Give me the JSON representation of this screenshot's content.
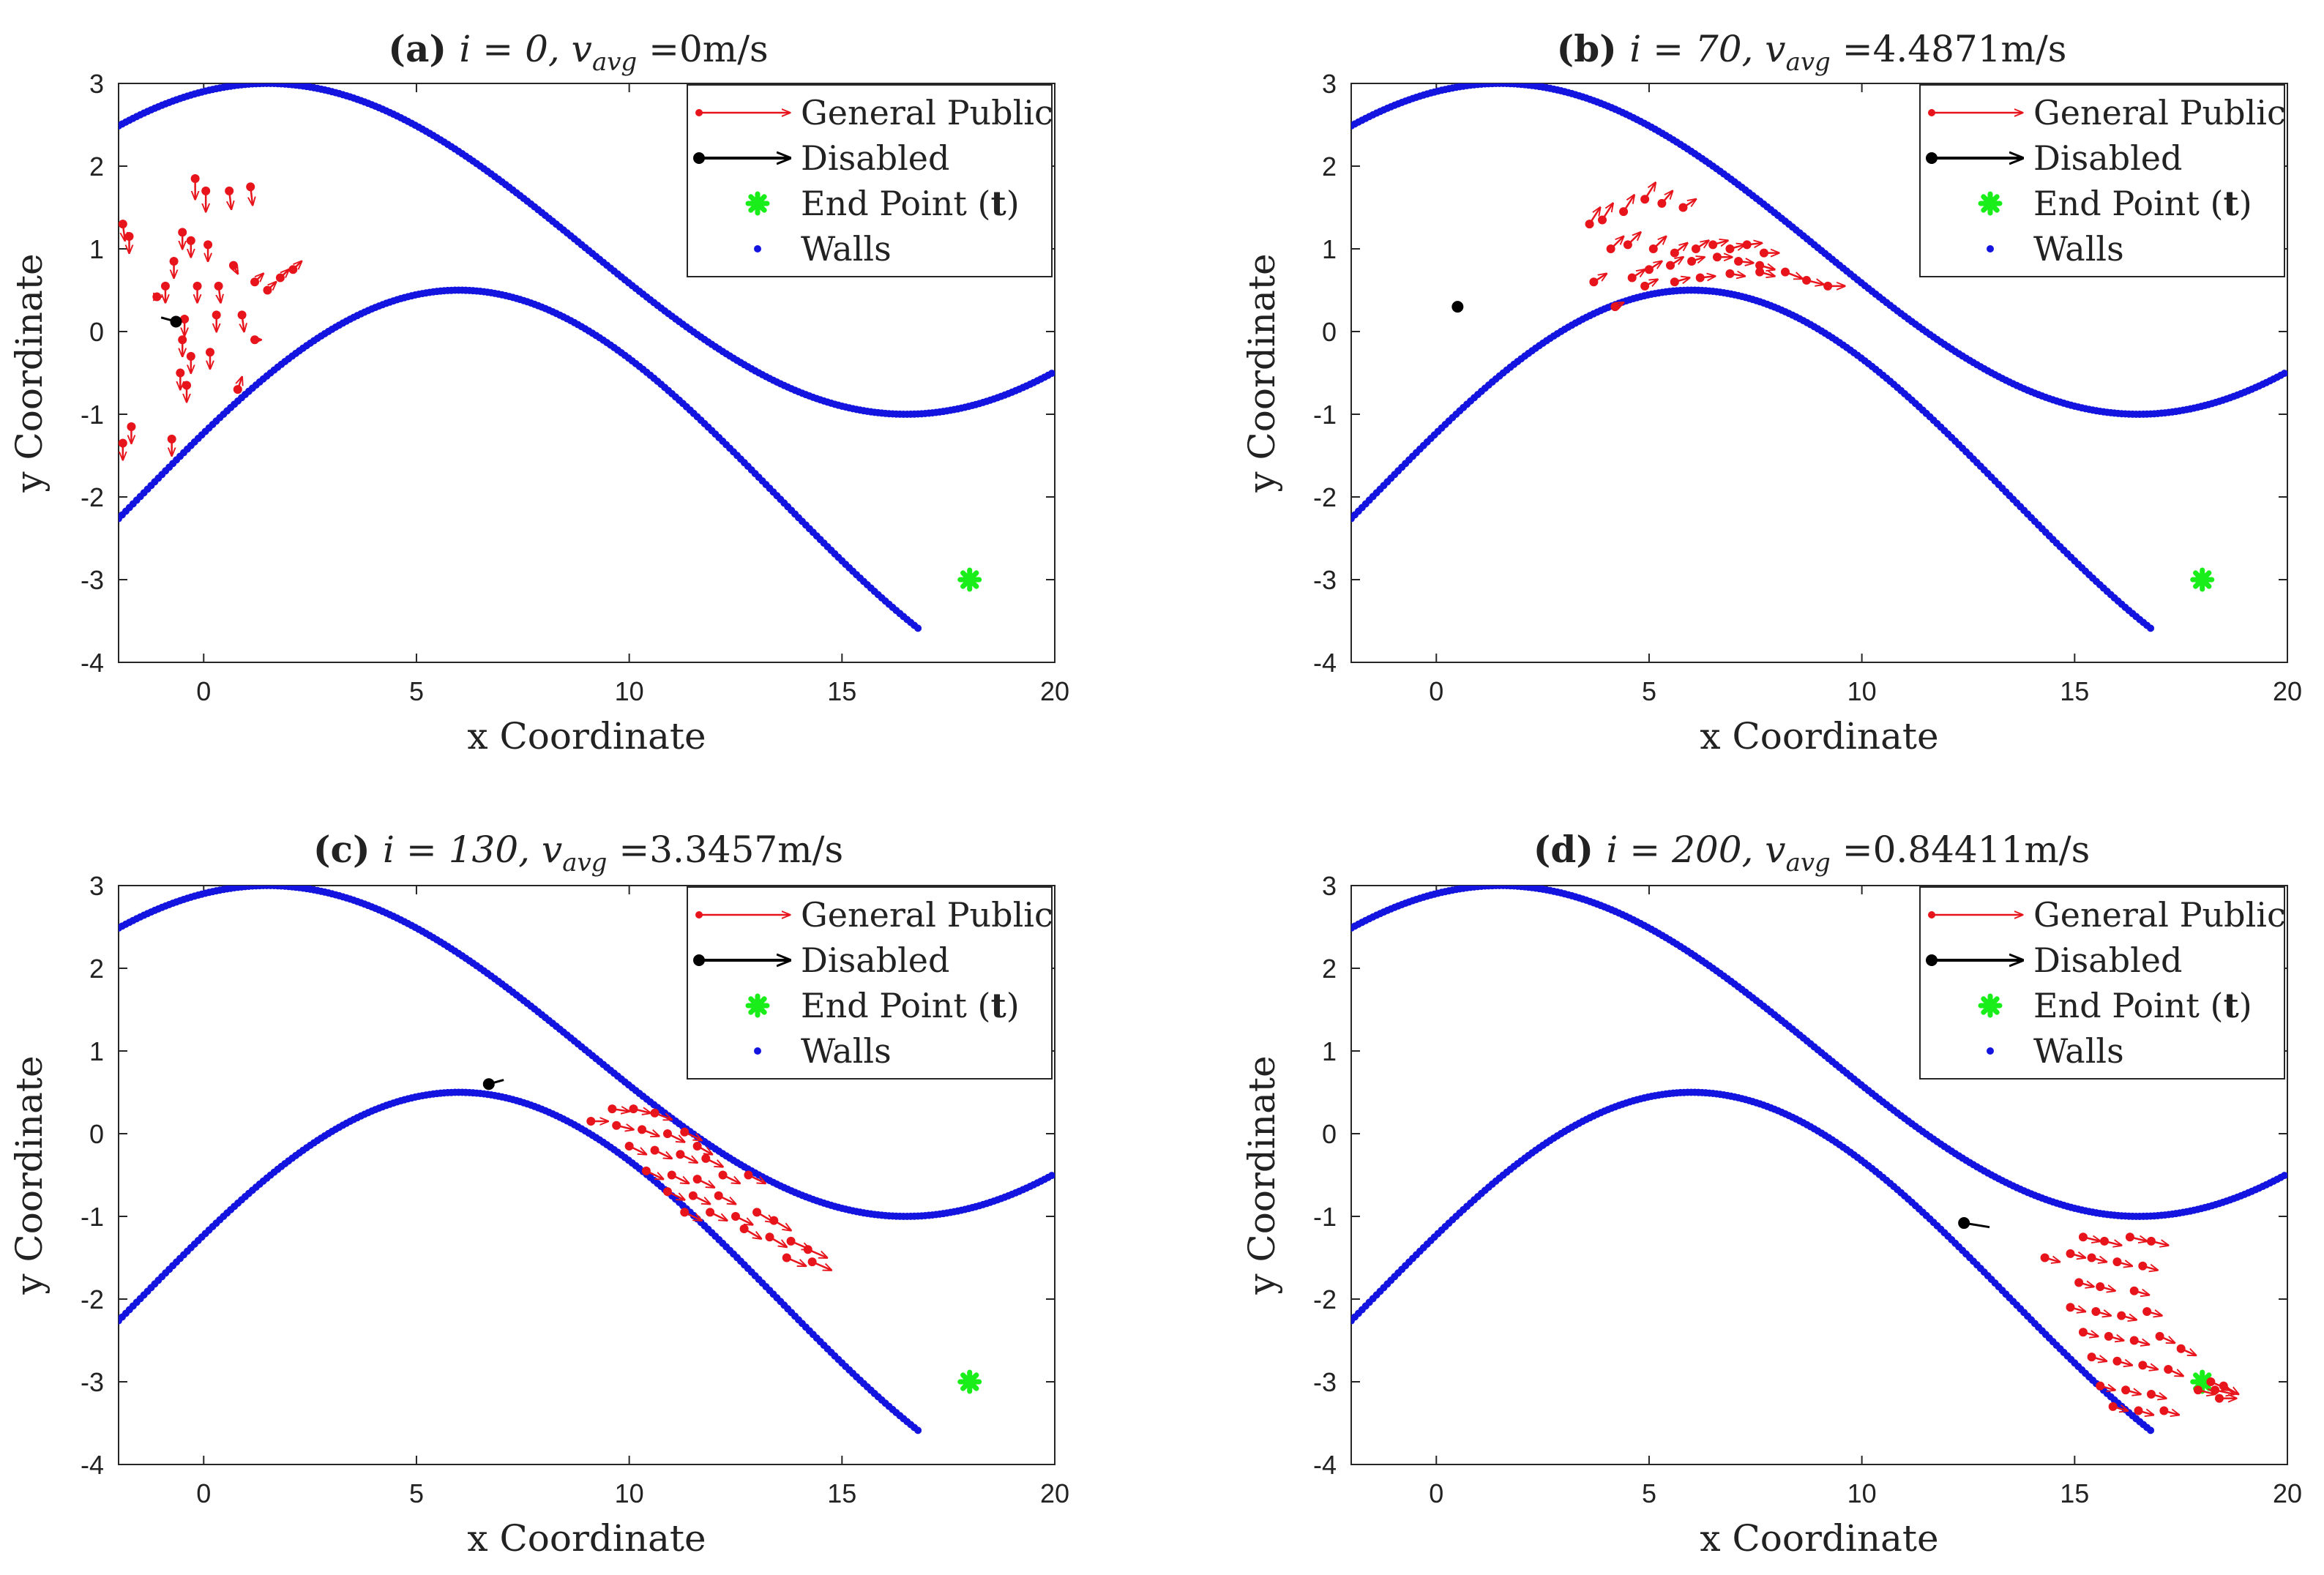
{
  "chart_data": [
    {
      "type": "scatter",
      "title_prefix": "(a)",
      "title_math": "i = 0, v",
      "title_sub": "avg",
      "title_value": "=0m/s",
      "xlabel": "x Coordinate",
      "ylabel": "y Coordinate",
      "xlim": [
        -2,
        20
      ],
      "ylim": [
        -4,
        3
      ],
      "xticks": [
        "0",
        "5",
        "10",
        "15",
        "20"
      ],
      "yticks": [
        "-4",
        "-3",
        "-2",
        "-1",
        "0",
        "1",
        "2",
        "3"
      ],
      "grid": false,
      "legend_position": "top-right",
      "legend": [
        "General Public",
        "Disabled",
        "End Point (t)",
        "Walls"
      ],
      "walls": {
        "upper": {
          "amplitude": 2,
          "offset": 1,
          "phase_x": 1.5,
          "period": 30,
          "x_range": [
            -2,
            20
          ]
        },
        "lower": {
          "amplitude": 2.5,
          "offset": -2,
          "phase_x": 6,
          "period": 30,
          "x_range": [
            -2,
            16.8
          ]
        }
      },
      "end_point": {
        "x": 18,
        "y": -3
      },
      "disabled": [
        {
          "x": -0.65,
          "y": 0.12,
          "dx": -0.35,
          "dy": 0.05
        }
      ],
      "public": [
        {
          "x": -1.9,
          "y": 1.3,
          "dx": 0.05,
          "dy": -0.2
        },
        {
          "x": -1.75,
          "y": 1.15,
          "dx": 0.0,
          "dy": -0.2
        },
        {
          "x": -0.2,
          "y": 1.85,
          "dx": 0.0,
          "dy": -0.25
        },
        {
          "x": 0.05,
          "y": 1.7,
          "dx": 0.0,
          "dy": -0.25
        },
        {
          "x": 0.6,
          "y": 1.7,
          "dx": 0.05,
          "dy": -0.22
        },
        {
          "x": 1.1,
          "y": 1.75,
          "dx": 0.05,
          "dy": -0.22
        },
        {
          "x": -0.5,
          "y": 1.2,
          "dx": 0.0,
          "dy": -0.2
        },
        {
          "x": -0.3,
          "y": 1.1,
          "dx": 0.0,
          "dy": -0.2
        },
        {
          "x": 0.1,
          "y": 1.05,
          "dx": 0.0,
          "dy": -0.2
        },
        {
          "x": 0.7,
          "y": 0.8,
          "dx": 0.1,
          "dy": -0.1
        },
        {
          "x": 1.2,
          "y": 0.6,
          "dx": 0.2,
          "dy": 0.1
        },
        {
          "x": 1.5,
          "y": 0.5,
          "dx": 0.2,
          "dy": 0.1
        },
        {
          "x": 1.8,
          "y": 0.65,
          "dx": 0.2,
          "dy": 0.1
        },
        {
          "x": 2.1,
          "y": 0.75,
          "dx": 0.2,
          "dy": 0.1
        },
        {
          "x": -1.1,
          "y": 0.42,
          "dx": 0.1,
          "dy": 0.0
        },
        {
          "x": -0.9,
          "y": 0.55,
          "dx": 0.0,
          "dy": -0.2
        },
        {
          "x": -0.7,
          "y": 0.85,
          "dx": 0.0,
          "dy": -0.2
        },
        {
          "x": -0.15,
          "y": 0.55,
          "dx": 0.0,
          "dy": -0.2
        },
        {
          "x": 0.35,
          "y": 0.55,
          "dx": 0.05,
          "dy": -0.2
        },
        {
          "x": 0.3,
          "y": 0.2,
          "dx": 0.0,
          "dy": -0.2
        },
        {
          "x": 0.9,
          "y": 0.2,
          "dx": 0.05,
          "dy": -0.2
        },
        {
          "x": -0.45,
          "y": 0.15,
          "dx": 0.0,
          "dy": -0.2
        },
        {
          "x": -0.5,
          "y": -0.1,
          "dx": 0.0,
          "dy": -0.2
        },
        {
          "x": -0.3,
          "y": -0.3,
          "dx": 0.0,
          "dy": -0.2
        },
        {
          "x": 0.15,
          "y": -0.25,
          "dx": 0.0,
          "dy": -0.2
        },
        {
          "x": -0.55,
          "y": -0.5,
          "dx": 0.0,
          "dy": -0.2
        },
        {
          "x": -0.4,
          "y": -0.65,
          "dx": 0.0,
          "dy": -0.2
        },
        {
          "x": 1.2,
          "y": -0.1,
          "dx": 0.15,
          "dy": 0.0
        },
        {
          "x": 0.8,
          "y": -0.7,
          "dx": 0.1,
          "dy": 0.15
        },
        {
          "x": -1.7,
          "y": -1.15,
          "dx": 0.0,
          "dy": -0.2
        },
        {
          "x": -1.9,
          "y": -1.35,
          "dx": 0.0,
          "dy": -0.2
        },
        {
          "x": -0.75,
          "y": -1.3,
          "dx": 0.0,
          "dy": -0.2
        }
      ]
    },
    {
      "type": "scatter",
      "title_prefix": "(b)",
      "title_math": "i = 70, v",
      "title_sub": "avg",
      "title_value": "=4.4871m/s",
      "xlabel": "x Coordinate",
      "ylabel": "y Coordinate",
      "xlim": [
        -2,
        20
      ],
      "ylim": [
        -4,
        3
      ],
      "xticks": [
        "0",
        "5",
        "10",
        "15",
        "20"
      ],
      "yticks": [
        "-4",
        "-3",
        "-2",
        "-1",
        "0",
        "1",
        "2",
        "3"
      ],
      "grid": false,
      "legend_position": "top-right",
      "legend": [
        "General Public",
        "Disabled",
        "End Point (t)",
        "Walls"
      ],
      "walls": {
        "upper": {
          "amplitude": 2,
          "offset": 1,
          "phase_x": 1.5,
          "period": 30,
          "x_range": [
            -2,
            20
          ]
        },
        "lower": {
          "amplitude": 2.5,
          "offset": -2,
          "phase_x": 6,
          "period": 30,
          "x_range": [
            -2,
            16.8
          ]
        }
      },
      "end_point": {
        "x": 18,
        "y": -3
      },
      "disabled": [
        {
          "x": 0.5,
          "y": 0.3,
          "dx": 0,
          "dy": 0
        }
      ],
      "public": [
        {
          "x": 3.6,
          "y": 1.3,
          "dx": 0.25,
          "dy": 0.2
        },
        {
          "x": 3.9,
          "y": 1.35,
          "dx": 0.25,
          "dy": 0.2
        },
        {
          "x": 4.4,
          "y": 1.45,
          "dx": 0.25,
          "dy": 0.2
        },
        {
          "x": 4.9,
          "y": 1.6,
          "dx": 0.25,
          "dy": 0.2
        },
        {
          "x": 5.3,
          "y": 1.55,
          "dx": 0.25,
          "dy": 0.15
        },
        {
          "x": 5.8,
          "y": 1.5,
          "dx": 0.3,
          "dy": 0.1
        },
        {
          "x": 4.1,
          "y": 1.0,
          "dx": 0.3,
          "dy": 0.15
        },
        {
          "x": 4.5,
          "y": 1.05,
          "dx": 0.3,
          "dy": 0.15
        },
        {
          "x": 5.1,
          "y": 1.0,
          "dx": 0.3,
          "dy": 0.15
        },
        {
          "x": 5.6,
          "y": 0.95,
          "dx": 0.3,
          "dy": 0.12
        },
        {
          "x": 6.1,
          "y": 1.0,
          "dx": 0.3,
          "dy": 0.1
        },
        {
          "x": 6.5,
          "y": 1.05,
          "dx": 0.35,
          "dy": 0.05
        },
        {
          "x": 6.9,
          "y": 1.0,
          "dx": 0.35,
          "dy": 0.05
        },
        {
          "x": 7.3,
          "y": 1.05,
          "dx": 0.35,
          "dy": 0.02
        },
        {
          "x": 7.7,
          "y": 0.95,
          "dx": 0.35,
          "dy": 0.0
        },
        {
          "x": 3.7,
          "y": 0.6,
          "dx": 0.3,
          "dy": 0.1
        },
        {
          "x": 4.6,
          "y": 0.65,
          "dx": 0.3,
          "dy": 0.1
        },
        {
          "x": 5.0,
          "y": 0.75,
          "dx": 0.3,
          "dy": 0.1
        },
        {
          "x": 5.5,
          "y": 0.8,
          "dx": 0.3,
          "dy": 0.1
        },
        {
          "x": 6.0,
          "y": 0.85,
          "dx": 0.3,
          "dy": 0.05
        },
        {
          "x": 6.6,
          "y": 0.9,
          "dx": 0.35,
          "dy": 0.0
        },
        {
          "x": 7.1,
          "y": 0.85,
          "dx": 0.35,
          "dy": -0.02
        },
        {
          "x": 7.6,
          "y": 0.8,
          "dx": 0.35,
          "dy": -0.05
        },
        {
          "x": 4.9,
          "y": 0.55,
          "dx": 0.3,
          "dy": 0.08
        },
        {
          "x": 5.6,
          "y": 0.6,
          "dx": 0.35,
          "dy": 0.05
        },
        {
          "x": 6.2,
          "y": 0.65,
          "dx": 0.35,
          "dy": 0.02
        },
        {
          "x": 6.9,
          "y": 0.7,
          "dx": 0.35,
          "dy": -0.03
        },
        {
          "x": 7.6,
          "y": 0.72,
          "dx": 0.35,
          "dy": -0.05
        },
        {
          "x": 8.2,
          "y": 0.72,
          "dx": 0.4,
          "dy": -0.08
        },
        {
          "x": 8.7,
          "y": 0.62,
          "dx": 0.4,
          "dy": -0.05
        },
        {
          "x": 9.2,
          "y": 0.55,
          "dx": 0.4,
          "dy": 0.0
        },
        {
          "x": 4.2,
          "y": 0.3,
          "dx": 0.2,
          "dy": 0.05
        }
      ]
    },
    {
      "type": "scatter",
      "title_prefix": "(c)",
      "title_math": "i = 130, v",
      "title_sub": "avg",
      "title_value": "=3.3457m/s",
      "xlabel": "x Coordinate",
      "ylabel": "y Coordinate",
      "xlim": [
        -2,
        20
      ],
      "ylim": [
        -4,
        3
      ],
      "xticks": [
        "0",
        "5",
        "10",
        "15",
        "20"
      ],
      "yticks": [
        "-4",
        "-3",
        "-2",
        "-1",
        "0",
        "1",
        "2",
        "3"
      ],
      "grid": false,
      "legend_position": "top-right",
      "legend": [
        "General Public",
        "Disabled",
        "End Point (t)",
        "Walls"
      ],
      "walls": {
        "upper": {
          "amplitude": 2,
          "offset": 1,
          "phase_x": 1.5,
          "period": 30,
          "x_range": [
            -2,
            20
          ]
        },
        "lower": {
          "amplitude": 2.5,
          "offset": -2,
          "phase_x": 6,
          "period": 30,
          "x_range": [
            -2,
            16.8
          ]
        }
      },
      "end_point": {
        "x": 18,
        "y": -3
      },
      "disabled": [
        {
          "x": 6.7,
          "y": 0.6,
          "dx": 0.35,
          "dy": 0.05
        }
      ],
      "public": [
        {
          "x": 9.1,
          "y": 0.15,
          "dx": 0.4,
          "dy": 0.0
        },
        {
          "x": 9.6,
          "y": 0.3,
          "dx": 0.4,
          "dy": -0.03
        },
        {
          "x": 10.1,
          "y": 0.3,
          "dx": 0.4,
          "dy": -0.05
        },
        {
          "x": 10.6,
          "y": 0.25,
          "dx": 0.4,
          "dy": -0.08
        },
        {
          "x": 9.7,
          "y": 0.1,
          "dx": 0.4,
          "dy": -0.05
        },
        {
          "x": 10.3,
          "y": 0.05,
          "dx": 0.4,
          "dy": -0.08
        },
        {
          "x": 10.9,
          "y": 0.0,
          "dx": 0.4,
          "dy": -0.1
        },
        {
          "x": 11.3,
          "y": 0.02,
          "dx": 0.4,
          "dy": -0.1
        },
        {
          "x": 10.0,
          "y": -0.15,
          "dx": 0.4,
          "dy": -0.1
        },
        {
          "x": 10.6,
          "y": -0.2,
          "dx": 0.4,
          "dy": -0.1
        },
        {
          "x": 11.2,
          "y": -0.25,
          "dx": 0.4,
          "dy": -0.1
        },
        {
          "x": 11.8,
          "y": -0.3,
          "dx": 0.4,
          "dy": -0.1
        },
        {
          "x": 10.4,
          "y": -0.45,
          "dx": 0.4,
          "dy": -0.1
        },
        {
          "x": 11.0,
          "y": -0.5,
          "dx": 0.4,
          "dy": -0.1
        },
        {
          "x": 11.6,
          "y": -0.55,
          "dx": 0.4,
          "dy": -0.1
        },
        {
          "x": 12.2,
          "y": -0.5,
          "dx": 0.4,
          "dy": -0.1
        },
        {
          "x": 12.8,
          "y": -0.5,
          "dx": 0.4,
          "dy": -0.1
        },
        {
          "x": 10.9,
          "y": -0.7,
          "dx": 0.4,
          "dy": -0.1
        },
        {
          "x": 11.5,
          "y": -0.75,
          "dx": 0.4,
          "dy": -0.1
        },
        {
          "x": 12.1,
          "y": -0.75,
          "dx": 0.4,
          "dy": -0.1
        },
        {
          "x": 11.3,
          "y": -0.95,
          "dx": 0.4,
          "dy": -0.1
        },
        {
          "x": 11.9,
          "y": -0.95,
          "dx": 0.4,
          "dy": -0.1
        },
        {
          "x": 12.5,
          "y": -1.0,
          "dx": 0.4,
          "dy": -0.1
        },
        {
          "x": 13.0,
          "y": -0.95,
          "dx": 0.4,
          "dy": -0.12
        },
        {
          "x": 13.4,
          "y": -1.05,
          "dx": 0.4,
          "dy": -0.12
        },
        {
          "x": 12.7,
          "y": -1.15,
          "dx": 0.4,
          "dy": -0.12
        },
        {
          "x": 13.3,
          "y": -1.25,
          "dx": 0.4,
          "dy": -0.12
        },
        {
          "x": 13.8,
          "y": -1.3,
          "dx": 0.45,
          "dy": -0.1
        },
        {
          "x": 14.2,
          "y": -1.4,
          "dx": 0.45,
          "dy": -0.1
        },
        {
          "x": 13.7,
          "y": -1.5,
          "dx": 0.45,
          "dy": -0.1
        },
        {
          "x": 14.3,
          "y": -1.55,
          "dx": 0.45,
          "dy": -0.1
        },
        {
          "x": 11.6,
          "y": -0.15,
          "dx": 0.35,
          "dy": -0.1
        }
      ]
    },
    {
      "type": "scatter",
      "title_prefix": "(d)",
      "title_math": "i = 200, v",
      "title_sub": "avg",
      "title_value": "=0.84411m/s",
      "xlabel": "x Coordinate",
      "ylabel": "y Coordinate",
      "xlim": [
        -2,
        20
      ],
      "ylim": [
        -4,
        3
      ],
      "xticks": [
        "0",
        "5",
        "10",
        "15",
        "20"
      ],
      "yticks": [
        "-4",
        "-3",
        "-2",
        "-1",
        "0",
        "1",
        "2",
        "3"
      ],
      "grid": false,
      "legend_position": "top-right",
      "legend": [
        "General Public",
        "Disabled",
        "End Point (t)",
        "Walls"
      ],
      "walls": {
        "upper": {
          "amplitude": 2,
          "offset": 1,
          "phase_x": 1.5,
          "period": 30,
          "x_range": [
            -2,
            20
          ]
        },
        "lower": {
          "amplitude": 2.5,
          "offset": -2,
          "phase_x": 6,
          "period": 30,
          "x_range": [
            -2,
            16.8
          ]
        }
      },
      "end_point": {
        "x": 18,
        "y": -3
      },
      "disabled": [
        {
          "x": 12.4,
          "y": -1.08,
          "dx": 0.6,
          "dy": -0.05
        }
      ],
      "public": [
        {
          "x": 15.2,
          "y": -1.25,
          "dx": 0.4,
          "dy": -0.05
        },
        {
          "x": 15.7,
          "y": -1.3,
          "dx": 0.4,
          "dy": -0.05
        },
        {
          "x": 16.3,
          "y": -1.25,
          "dx": 0.4,
          "dy": -0.05
        },
        {
          "x": 16.8,
          "y": -1.3,
          "dx": 0.4,
          "dy": -0.05
        },
        {
          "x": 14.3,
          "y": -1.5,
          "dx": 0.35,
          "dy": -0.05
        },
        {
          "x": 14.9,
          "y": -1.45,
          "dx": 0.35,
          "dy": -0.05
        },
        {
          "x": 15.4,
          "y": -1.5,
          "dx": 0.35,
          "dy": -0.05
        },
        {
          "x": 16.0,
          "y": -1.55,
          "dx": 0.35,
          "dy": -0.05
        },
        {
          "x": 16.6,
          "y": -1.6,
          "dx": 0.35,
          "dy": -0.05
        },
        {
          "x": 15.1,
          "y": -1.8,
          "dx": 0.35,
          "dy": -0.05
        },
        {
          "x": 15.6,
          "y": -1.85,
          "dx": 0.35,
          "dy": -0.05
        },
        {
          "x": 16.4,
          "y": -1.9,
          "dx": 0.35,
          "dy": -0.05
        },
        {
          "x": 14.9,
          "y": -2.1,
          "dx": 0.35,
          "dy": -0.05
        },
        {
          "x": 15.5,
          "y": -2.15,
          "dx": 0.35,
          "dy": -0.05
        },
        {
          "x": 16.1,
          "y": -2.2,
          "dx": 0.35,
          "dy": -0.05
        },
        {
          "x": 16.7,
          "y": -2.15,
          "dx": 0.35,
          "dy": -0.05
        },
        {
          "x": 15.2,
          "y": -2.4,
          "dx": 0.35,
          "dy": -0.05
        },
        {
          "x": 15.8,
          "y": -2.45,
          "dx": 0.35,
          "dy": -0.05
        },
        {
          "x": 16.4,
          "y": -2.5,
          "dx": 0.35,
          "dy": -0.05
        },
        {
          "x": 17.0,
          "y": -2.45,
          "dx": 0.35,
          "dy": -0.08
        },
        {
          "x": 17.5,
          "y": -2.6,
          "dx": 0.35,
          "dy": -0.08
        },
        {
          "x": 15.4,
          "y": -2.7,
          "dx": 0.35,
          "dy": -0.05
        },
        {
          "x": 16.0,
          "y": -2.75,
          "dx": 0.35,
          "dy": -0.05
        },
        {
          "x": 16.6,
          "y": -2.8,
          "dx": 0.35,
          "dy": -0.05
        },
        {
          "x": 17.2,
          "y": -2.85,
          "dx": 0.35,
          "dy": -0.08
        },
        {
          "x": 15.6,
          "y": -3.05,
          "dx": 0.35,
          "dy": -0.05
        },
        {
          "x": 16.2,
          "y": -3.1,
          "dx": 0.35,
          "dy": -0.05
        },
        {
          "x": 16.8,
          "y": -3.15,
          "dx": 0.35,
          "dy": -0.05
        },
        {
          "x": 15.9,
          "y": -3.3,
          "dx": 0.35,
          "dy": -0.05
        },
        {
          "x": 16.5,
          "y": -3.35,
          "dx": 0.35,
          "dy": -0.05
        },
        {
          "x": 17.1,
          "y": -3.35,
          "dx": 0.35,
          "dy": -0.05
        },
        {
          "x": 18.2,
          "y": -3.0,
          "dx": 0.45,
          "dy": -0.1
        },
        {
          "x": 18.3,
          "y": -3.1,
          "dx": 0.45,
          "dy": -0.05
        },
        {
          "x": 18.4,
          "y": -3.2,
          "dx": 0.4,
          "dy": 0.0
        },
        {
          "x": 18.5,
          "y": -3.05,
          "dx": 0.35,
          "dy": -0.1
        },
        {
          "x": 17.9,
          "y": -3.1,
          "dx": 0.4,
          "dy": -0.05
        }
      ]
    }
  ]
}
